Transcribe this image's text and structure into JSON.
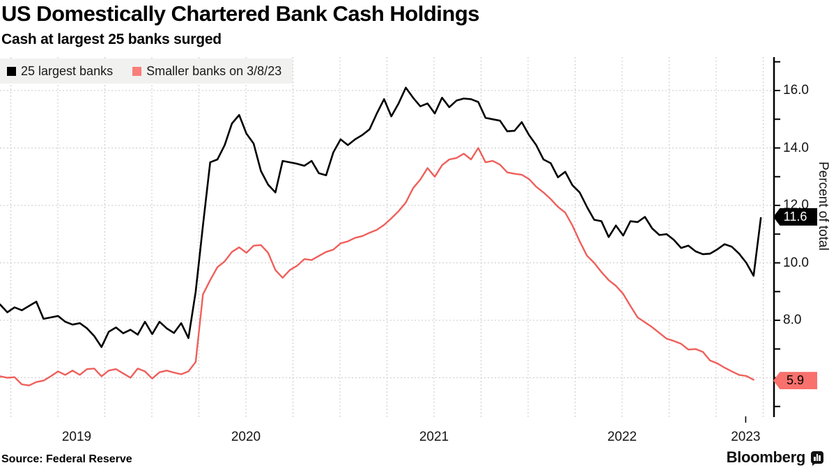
{
  "header": {
    "title": "US Domestically Chartered Bank Cash Holdings",
    "subtitle": "Cash at largest 25 banks surged"
  },
  "footer": {
    "source_label": "Source:",
    "source_value": "Federal Reserve",
    "brand": "Bloomberg"
  },
  "colors": {
    "large_banks_line": "#000000",
    "smaller_banks_line": "#ef5f5b",
    "large_banks_swatch": "#000000",
    "smaller_banks_swatch": "#f97e79",
    "tag_large_bg": "#000000",
    "tag_large_text": "#ffffff",
    "tag_small_bg": "#f8716c",
    "tag_small_text": "#000000",
    "grid": "#c9c9c9",
    "axis": "#000000",
    "legend_bg": "#f1f1f0"
  },
  "chart_data": {
    "type": "line",
    "title": "US Domestically Chartered Bank Cash Holdings",
    "subtitle": "Cash at largest 25 banks surged",
    "ylabel": "Percent of total",
    "xlabel": "",
    "grid": "dashed, quarterly vertical + every 2.0 horizontal",
    "legend_position": "top-left",
    "x_domain_years": [
      2019.19,
      2023.25
    ],
    "ylim": [
      4.65,
      17.15
    ],
    "y_major_ticks": [
      16.0,
      14.0,
      12.0,
      10.0,
      8.0
    ],
    "y_minor_tick_step": 1.0,
    "y_tick_format": "%.1f",
    "x_tick_years": [
      {
        "label": "2019",
        "t": 2019.6
      },
      {
        "label": "2020",
        "t": 2020.5
      },
      {
        "label": "2021",
        "t": 2021.5
      },
      {
        "label": "2022",
        "t": 2022.5
      },
      {
        "label": "2023",
        "t": 2023.157
      }
    ],
    "x_grid": {
      "t0": 2019.25,
      "step": 0.25,
      "count": 17
    },
    "end_tags": [
      {
        "label": "11.6",
        "value": 11.6,
        "series": "25 largest banks"
      },
      {
        "label": "5.9",
        "value": 5.9,
        "series": "Smaller banks on 3/8/23"
      }
    ],
    "sampling": {
      "t0": 2019.193,
      "dt_years": 0.038519,
      "note": "values sampled ~biweekly, percent of total assets"
    },
    "series": [
      {
        "name": "25 largest banks",
        "color": "#000000",
        "width": 2.6,
        "values": [
          8.55,
          8.28,
          8.45,
          8.35,
          8.5,
          8.65,
          8.05,
          8.1,
          8.15,
          7.95,
          7.85,
          7.9,
          7.72,
          7.45,
          7.07,
          7.6,
          7.75,
          7.55,
          7.67,
          7.5,
          7.95,
          7.52,
          7.95,
          7.72,
          7.56,
          7.9,
          7.38,
          9.0,
          11.3,
          13.5,
          13.6,
          14.1,
          14.85,
          15.15,
          14.5,
          14.15,
          13.2,
          12.72,
          12.45,
          13.55,
          13.5,
          13.45,
          13.38,
          13.55,
          13.12,
          13.05,
          13.85,
          14.3,
          14.1,
          14.3,
          14.45,
          14.65,
          15.2,
          15.7,
          15.1,
          15.55,
          16.1,
          15.75,
          15.45,
          15.55,
          15.2,
          15.75,
          15.42,
          15.65,
          15.72,
          15.7,
          15.6,
          15.05,
          15.0,
          14.95,
          14.58,
          14.6,
          14.9,
          14.45,
          14.1,
          13.6,
          13.47,
          12.98,
          13.17,
          12.7,
          12.45,
          11.95,
          11.5,
          11.45,
          10.9,
          11.3,
          10.95,
          11.45,
          11.42,
          11.6,
          11.2,
          10.97,
          11.0,
          10.8,
          10.52,
          10.6,
          10.4,
          10.3,
          10.32,
          10.47,
          10.65,
          10.56,
          10.32,
          10.0,
          9.55,
          11.56
        ]
      },
      {
        "name": "Smaller banks on 3/8/23",
        "color": "#ef5f5b",
        "width": 2.4,
        "values": [
          6.05,
          6.0,
          6.02,
          5.77,
          5.73,
          5.85,
          5.9,
          6.05,
          6.22,
          6.1,
          6.25,
          6.1,
          6.3,
          6.32,
          6.05,
          6.25,
          6.3,
          6.15,
          6.0,
          6.32,
          6.22,
          5.97,
          6.19,
          6.25,
          6.18,
          6.12,
          6.22,
          6.55,
          8.9,
          9.4,
          9.85,
          10.05,
          10.38,
          10.54,
          10.35,
          10.6,
          10.62,
          10.35,
          9.75,
          9.48,
          9.75,
          9.9,
          10.13,
          10.1,
          10.24,
          10.38,
          10.46,
          10.68,
          10.75,
          10.87,
          10.93,
          11.05,
          11.15,
          11.32,
          11.55,
          11.8,
          12.1,
          12.6,
          12.9,
          13.3,
          13.0,
          13.4,
          13.6,
          13.65,
          13.8,
          13.6,
          14.0,
          13.5,
          13.55,
          13.42,
          13.15,
          13.1,
          13.07,
          12.92,
          12.65,
          12.45,
          12.22,
          11.95,
          11.75,
          11.3,
          10.75,
          10.25,
          10.0,
          9.68,
          9.4,
          9.2,
          8.92,
          8.5,
          8.1,
          7.93,
          7.76,
          7.56,
          7.36,
          7.28,
          7.18,
          6.98,
          7.0,
          6.9,
          6.6,
          6.5,
          6.35,
          6.22,
          6.1,
          6.06,
          5.93
        ]
      }
    ]
  },
  "legend": {
    "items": [
      {
        "label": "25 largest banks"
      },
      {
        "label": "Smaller banks on 3/8/23"
      }
    ]
  }
}
